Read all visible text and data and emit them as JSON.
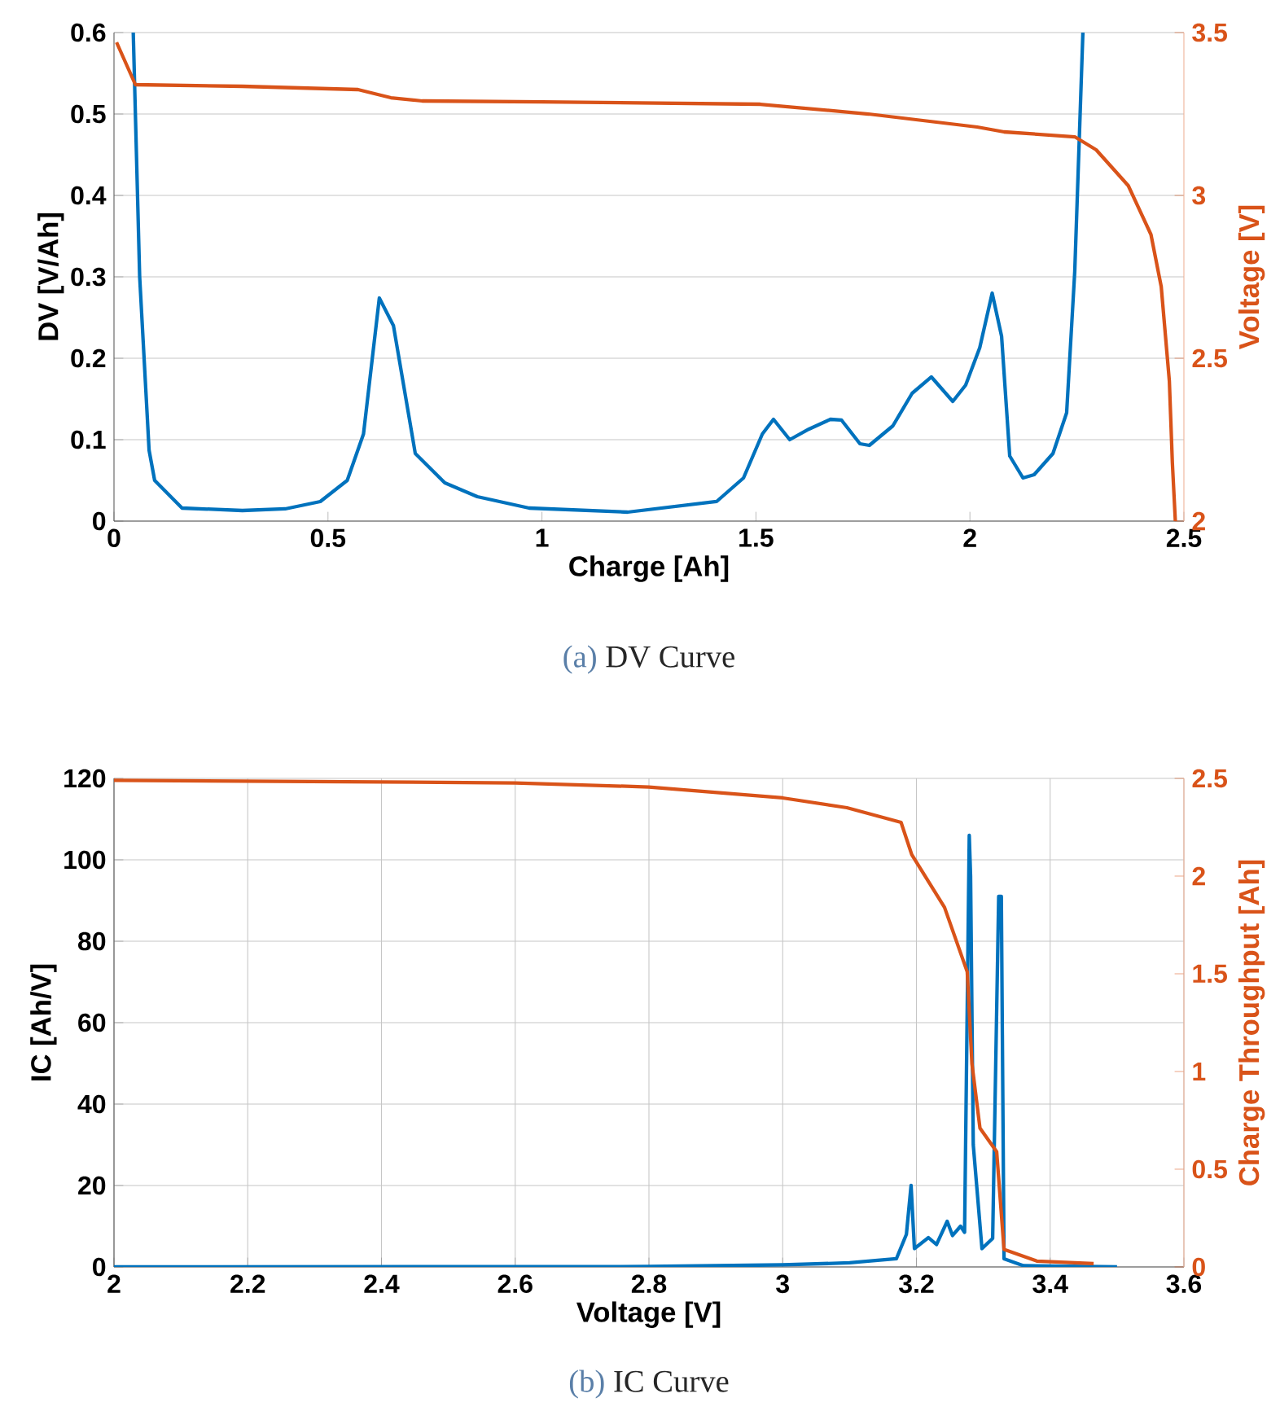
{
  "chart_data": [
    {
      "type": "line",
      "xlabel": "Charge [Ah]",
      "ylabel": "DV [V/Ah]",
      "y2label": "Voltage [V]",
      "annotations": [
        "(a)",
        "DV Curve"
      ],
      "xlim": [
        0,
        2.5
      ],
      "ylim": [
        0,
        0.6
      ],
      "y2lim": [
        2,
        3.5
      ],
      "xticks": [
        0,
        0.5,
        1,
        1.5,
        2,
        2.5
      ],
      "yticks": [
        0,
        0.1,
        0.2,
        0.3,
        0.4,
        0.5,
        0.6
      ],
      "y2ticks": [
        2,
        2.5,
        3,
        3.5
      ],
      "grid": "y",
      "series": [
        {
          "color": "#0072bd",
          "x": [
            0.045,
            0.06,
            0.082,
            0.095,
            0.159,
            0.3,
            0.4,
            0.482,
            0.545,
            0.583,
            0.62,
            0.653,
            0.704,
            0.773,
            0.849,
            0.97,
            1.2,
            1.408,
            1.471,
            1.515,
            1.541,
            1.579,
            1.624,
            1.674,
            1.7,
            1.743,
            1.765,
            1.82,
            1.865,
            1.91,
            1.96,
            1.99,
            2.023,
            2.052,
            2.074,
            2.093,
            2.124,
            2.15,
            2.194,
            2.226,
            2.245,
            2.264
          ],
          "values": [
            0.6,
            0.3,
            0.087,
            0.05,
            0.016,
            0.013,
            0.015,
            0.024,
            0.05,
            0.107,
            0.274,
            0.24,
            0.083,
            0.047,
            0.03,
            0.016,
            0.011,
            0.024,
            0.053,
            0.107,
            0.125,
            0.1,
            0.113,
            0.125,
            0.124,
            0.095,
            0.093,
            0.117,
            0.157,
            0.177,
            0.147,
            0.167,
            0.213,
            0.28,
            0.227,
            0.08,
            0.053,
            0.057,
            0.083,
            0.133,
            0.307,
            0.6
          ]
        },
        {
          "color": "#d95319",
          "axis": "y2",
          "x": [
            0.006,
            0.05,
            0.3,
            0.57,
            0.647,
            0.72,
            1.0,
            1.51,
            1.763,
            2.017,
            2.08,
            2.245,
            2.295,
            2.37,
            2.423,
            2.447,
            2.466,
            2.473,
            2.48
          ],
          "values": [
            3.47,
            3.34,
            3.335,
            3.325,
            3.3,
            3.29,
            3.287,
            3.28,
            3.25,
            3.21,
            3.195,
            3.18,
            3.14,
            3.03,
            2.88,
            2.72,
            2.43,
            2.18,
            2.0
          ]
        }
      ]
    },
    {
      "type": "line",
      "xlabel": "Voltage [V]",
      "ylabel": "IC [Ah/V]",
      "y2label": "Charge Throughput [Ah]",
      "annotations": [
        "(b)",
        "IC Curve"
      ],
      "xlim": [
        2,
        3.6
      ],
      "ylim": [
        0,
        120
      ],
      "y2lim": [
        0,
        2.5
      ],
      "xticks": [
        2,
        2.2,
        2.4,
        2.6,
        2.8,
        3,
        3.2,
        3.4,
        3.6
      ],
      "yticks": [
        0,
        20,
        40,
        60,
        80,
        100,
        120
      ],
      "y2ticks": [
        0,
        0.5,
        1,
        1.5,
        2,
        2.5
      ],
      "grid": true,
      "series": [
        {
          "color": "#0072bd",
          "x": [
            2,
            2.8,
            3.0,
            3.1,
            3.17,
            3.185,
            3.192,
            3.197,
            3.218,
            3.23,
            3.246,
            3.254,
            3.266,
            3.272,
            3.279,
            3.281,
            3.285,
            3.298,
            3.314,
            3.323,
            3.327,
            3.331,
            3.36,
            3.5
          ],
          "values": [
            0,
            0.1,
            0.5,
            1,
            2,
            8,
            20,
            4.5,
            7.2,
            5.5,
            11.2,
            7.7,
            10,
            8.5,
            106,
            96,
            30,
            4.5,
            7,
            91,
            91,
            2,
            0.3,
            0
          ]
        },
        {
          "color": "#d95319",
          "axis": "y2",
          "x": [
            2,
            2.6,
            2.8,
            3.0,
            3.096,
            3.177,
            3.193,
            3.242,
            3.276,
            3.283,
            3.295,
            3.32,
            3.331,
            3.38,
            3.465
          ],
          "values": [
            2.49,
            2.477,
            2.456,
            2.4,
            2.35,
            2.275,
            2.11,
            1.84,
            1.51,
            1.04,
            0.71,
            0.59,
            0.09,
            0.03,
            0.017
          ]
        }
      ]
    }
  ]
}
